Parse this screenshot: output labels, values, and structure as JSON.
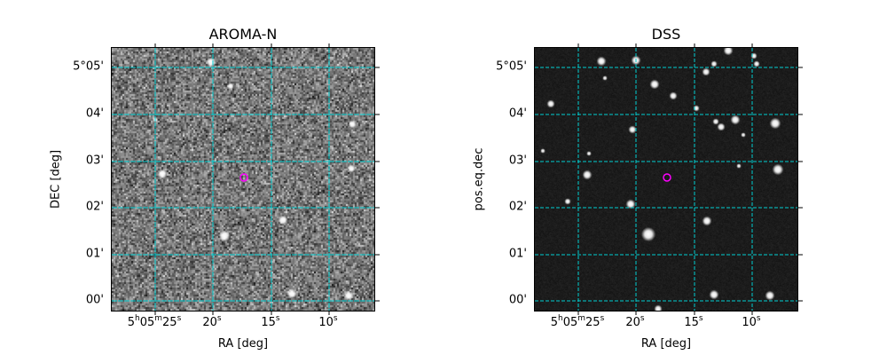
{
  "chart_data": [
    {
      "type": "heatmap",
      "title": "AROMA-N",
      "xlabel": "RA [deg]",
      "ylabel": "DEC [deg]",
      "x_ticks": [
        "5h05m25s",
        "20s",
        "15s",
        "10s"
      ],
      "y_ticks": [
        "5°05'",
        "04'",
        "03'",
        "02'",
        "01'",
        "00'"
      ],
      "grid": true,
      "grid_color": "#00ced1",
      "marker": {
        "shape": "circle",
        "color": "#ff00ff"
      },
      "colormap": "gray"
    },
    {
      "type": "heatmap",
      "title": "DSS",
      "xlabel": "RA [deg]",
      "ylabel": "pos.eq.dec",
      "x_ticks": [
        "5h05m25s",
        "20s",
        "15s",
        "10s"
      ],
      "y_ticks": [
        "5°05'",
        "04'",
        "03'",
        "02'",
        "01'",
        "00'"
      ],
      "grid": true,
      "grid_color": "#00ced1",
      "marker": {
        "shape": "circle",
        "color": "#ff00ff"
      },
      "colormap": "gray"
    }
  ]
}
